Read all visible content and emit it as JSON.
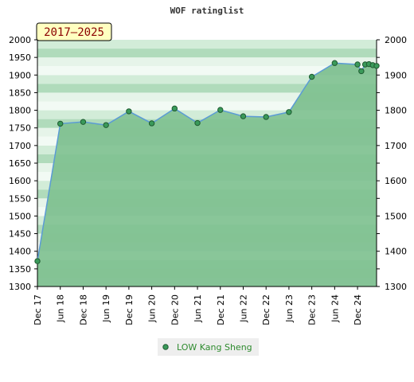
{
  "chart_data": {
    "type": "area",
    "title": "WOF ratinglist",
    "period_badge": "2017–2025",
    "ylim": [
      1300,
      2000
    ],
    "yticks": [
      1300,
      1350,
      1400,
      1450,
      1500,
      1550,
      1600,
      1650,
      1700,
      1750,
      1800,
      1850,
      1900,
      1950,
      2000
    ],
    "yticks_right": [
      1300,
      1400,
      1500,
      1600,
      1700,
      1800,
      1900,
      2000
    ],
    "xlim": [
      0,
      89
    ],
    "xticks": [
      {
        "label": "Dec 17",
        "m": 0
      },
      {
        "label": "Jun 18",
        "m": 6
      },
      {
        "label": "Dec 18",
        "m": 12
      },
      {
        "label": "Jun 19",
        "m": 18
      },
      {
        "label": "Dec 19",
        "m": 24
      },
      {
        "label": "Jun 20",
        "m": 30
      },
      {
        "label": "Dec 20",
        "m": 36
      },
      {
        "label": "Jun 21",
        "m": 42
      },
      {
        "label": "Dec 21",
        "m": 48
      },
      {
        "label": "Jun 22",
        "m": 54
      },
      {
        "label": "Dec 22",
        "m": 60
      },
      {
        "label": "Jun 23",
        "m": 66
      },
      {
        "label": "Dec 23",
        "m": 72
      },
      {
        "label": "Jun 24",
        "m": 78
      },
      {
        "label": "Dec 24",
        "m": 84
      }
    ],
    "series": [
      {
        "name": "LOW Kang Sheng",
        "x": [
          0,
          6,
          12,
          18,
          24,
          30,
          36,
          42,
          48,
          54,
          60,
          66,
          72,
          78,
          84,
          85,
          86,
          87,
          88,
          89
        ],
        "values": [
          1372,
          1762,
          1767,
          1758,
          1797,
          1763,
          1805,
          1764,
          1801,
          1783,
          1781,
          1795,
          1895,
          1934,
          1930,
          1911,
          1930,
          1931,
          1928,
          1926
        ]
      }
    ],
    "grid": true,
    "legend_position": "bottom",
    "colors": {
      "line": "#5b9bd5",
      "marker_fill": "#3a9a5a",
      "marker_stroke": "#1e5a30",
      "area": "#7cc08e",
      "band_dark": "#b0dbbb",
      "band_light": "#e6f4e9",
      "badge_fill": "#ffffc0"
    }
  }
}
